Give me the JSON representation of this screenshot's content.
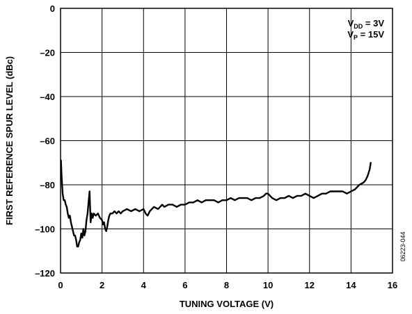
{
  "chart_data": {
    "type": "line",
    "title": "",
    "xlabel": "TUNING VOLTAGE (V)",
    "ylabel": "FIRST REFERENCE SPUR LEVEL (dBc)",
    "xlim": [
      0,
      16
    ],
    "ylim": [
      -120,
      0
    ],
    "xticks": [
      "0",
      "2",
      "4",
      "6",
      "8",
      "10",
      "12",
      "14",
      "16"
    ],
    "yticks": [
      "0",
      "–20",
      "–40",
      "–60",
      "–80",
      "–100",
      "–120"
    ],
    "grid": true,
    "annotation": {
      "line1": {
        "prefix": "V",
        "sub": "DD",
        "suffix": " = 3V"
      },
      "line2": {
        "prefix": "V",
        "sub": "P",
        "suffix": " = 15V"
      },
      "placement": "top-right"
    },
    "figure_id": "06223-044",
    "line_color": "#000000",
    "series": [
      {
        "x": [
          0.02,
          0.05,
          0.1,
          0.15,
          0.2,
          0.25,
          0.3,
          0.35,
          0.4,
          0.45,
          0.5,
          0.55,
          0.6,
          0.65,
          0.7,
          0.75,
          0.8,
          0.85,
          0.9,
          0.95,
          1.0,
          1.05,
          1.1,
          1.15,
          1.2,
          1.25,
          1.3,
          1.35,
          1.4,
          1.45,
          1.5,
          1.55,
          1.6,
          1.7,
          1.8,
          1.9,
          2.0,
          2.05,
          2.1,
          2.15,
          2.2,
          2.25,
          2.3,
          2.35,
          2.4,
          2.5,
          2.6,
          2.7,
          2.8,
          2.9,
          3.0,
          3.2,
          3.4,
          3.6,
          3.8,
          4.0,
          4.1,
          4.2,
          4.3,
          4.5,
          4.7,
          4.9,
          5.0,
          5.2,
          5.4,
          5.6,
          5.8,
          6.0,
          6.2,
          6.4,
          6.6,
          6.8,
          7.0,
          7.2,
          7.4,
          7.6,
          7.8,
          8.0,
          8.2,
          8.4,
          8.6,
          8.8,
          9.0,
          9.2,
          9.4,
          9.6,
          9.8,
          9.9,
          10.0,
          10.1,
          10.2,
          10.4,
          10.6,
          10.8,
          11.0,
          11.2,
          11.4,
          11.6,
          11.8,
          12.0,
          12.2,
          12.4,
          12.6,
          12.8,
          13.0,
          13.2,
          13.4,
          13.6,
          13.8,
          14.0,
          14.2,
          14.4,
          14.6,
          14.7,
          14.8,
          14.9,
          14.95
        ],
        "values": [
          -69,
          -76,
          -84,
          -87,
          -87,
          -89,
          -90,
          -93,
          -95,
          -94,
          -97,
          -99,
          -101,
          -103,
          -103,
          -105,
          -108,
          -108,
          -106,
          -105,
          -102,
          -104,
          -100,
          -103,
          -101,
          -96,
          -93,
          -88,
          -83,
          -97,
          -93,
          -95,
          -93,
          -94,
          -93,
          -95,
          -96,
          -98,
          -97,
          -100,
          -101,
          -99,
          -96,
          -94,
          -93,
          -93,
          -92,
          -93,
          -92,
          -93,
          -92,
          -91,
          -92,
          -91,
          -92,
          -91,
          -93,
          -94,
          -92,
          -90,
          -91,
          -89,
          -90,
          -89,
          -89,
          -90,
          -89,
          -89,
          -88,
          -88,
          -87,
          -88,
          -87,
          -87,
          -87,
          -88,
          -87,
          -87,
          -86,
          -87,
          -86,
          -86,
          -86,
          -87,
          -86,
          -86,
          -85,
          -84,
          -84,
          -85,
          -86,
          -87,
          -86,
          -86,
          -85,
          -86,
          -85,
          -85,
          -84,
          -85,
          -86,
          -85,
          -84,
          -84,
          -83,
          -83,
          -83,
          -83,
          -84,
          -83,
          -82,
          -80,
          -79,
          -78,
          -76,
          -73,
          -70
        ]
      }
    ]
  }
}
